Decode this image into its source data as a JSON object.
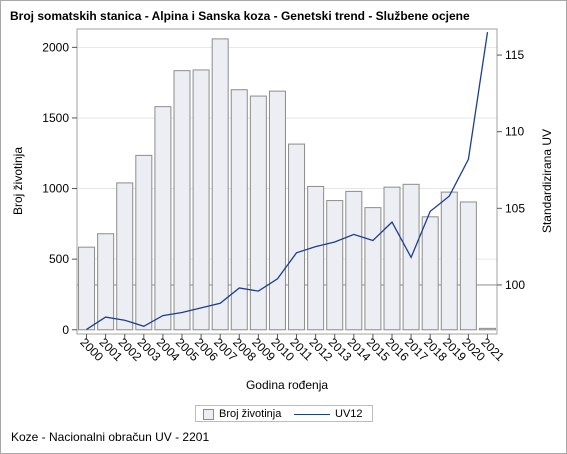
{
  "chart_data": {
    "type": "bar+line",
    "title": "Broj somatskih stanica - Alpina i Sanska koza - Genetski trend - Službene ocjene",
    "xlabel": "Godina rođenja",
    "ylabel_left": "Broj životinja",
    "ylabel_right": "Standardizirana UV",
    "categories": [
      "2000",
      "2001",
      "2002",
      "2003",
      "2004",
      "2005",
      "2006",
      "2007",
      "2008",
      "2009",
      "2010",
      "2011",
      "2012",
      "2013",
      "2014",
      "2015",
      "2016",
      "2017",
      "2018",
      "2019",
      "2020",
      "2021"
    ],
    "left_axis": {
      "range": [
        -30,
        2130
      ],
      "ticks": [
        0,
        500,
        1000,
        1500,
        2000
      ]
    },
    "right_axis": {
      "range": [
        96.8,
        116.7
      ],
      "ticks": [
        100,
        105,
        110,
        115
      ]
    },
    "reference_line_right": 100,
    "grid": "horizontal",
    "series": [
      {
        "name": "Broj životinja",
        "type": "bar",
        "axis": "left",
        "values": [
          585,
          680,
          1040,
          1235,
          1580,
          1835,
          1840,
          2060,
          1700,
          1655,
          1690,
          1315,
          1015,
          915,
          980,
          865,
          1010,
          1030,
          800,
          975,
          905,
          10
        ],
        "color": "#eceef3",
        "edge": "#8c8c8c"
      },
      {
        "name": "UV12",
        "type": "line",
        "axis": "right",
        "values": [
          97.1,
          97.9,
          97.7,
          97.3,
          98.0,
          98.2,
          98.5,
          98.8,
          99.8,
          99.6,
          100.4,
          102.1,
          102.5,
          102.8,
          103.3,
          102.9,
          104.1,
          101.8,
          104.8,
          105.8,
          108.2,
          116.5
        ],
        "color": "#1c3e91"
      }
    ],
    "legend_position": "bottom"
  },
  "legend": {
    "bar_label": "Broj životinja",
    "line_label": "UV12"
  },
  "footnote": "Koze - Nacionalni obračun UV - 2201"
}
